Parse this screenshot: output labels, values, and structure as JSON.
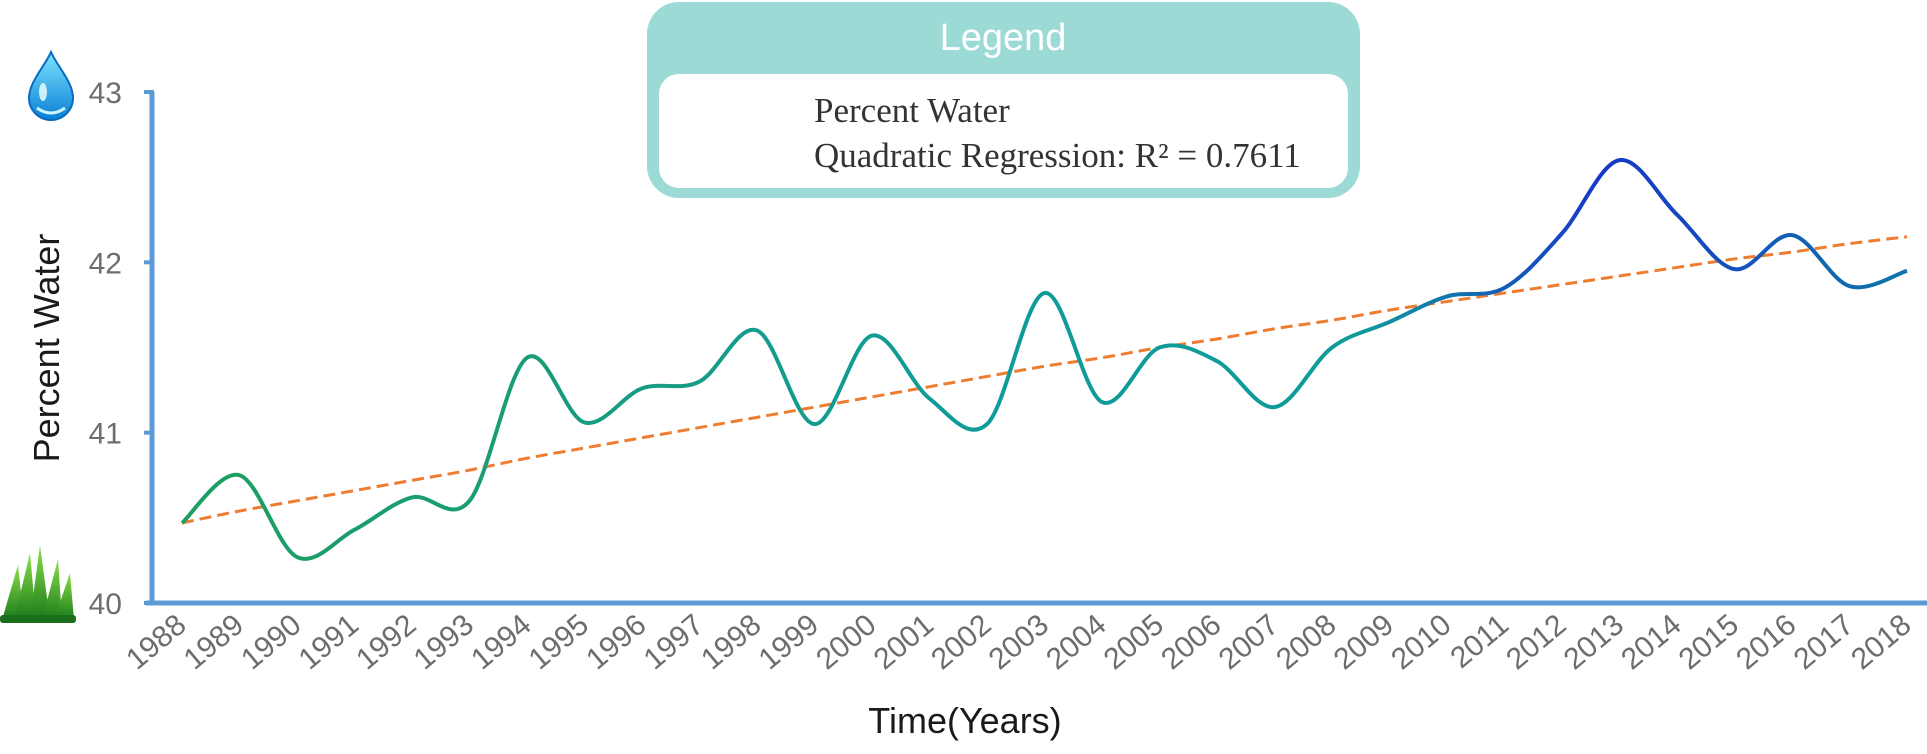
{
  "chart_data": {
    "type": "line",
    "xlabel": "Time(Years)",
    "ylabel": "Percent Water",
    "ylim": [
      40,
      43
    ],
    "yticks": [
      40,
      41,
      42,
      43
    ],
    "x": [
      1988,
      1989,
      1990,
      1991,
      1992,
      1993,
      1994,
      1995,
      1996,
      1997,
      1998,
      1999,
      2000,
      2001,
      2002,
      2003,
      2004,
      2005,
      2006,
      2007,
      2008,
      2009,
      2010,
      2011,
      2012,
      2013,
      2014,
      2015,
      2016,
      2017,
      2018
    ],
    "series": [
      {
        "name": "Percent Water",
        "values": [
          40.47,
          40.75,
          40.27,
          40.43,
          40.62,
          40.6,
          41.44,
          41.06,
          41.26,
          41.3,
          41.6,
          41.05,
          41.57,
          41.2,
          41.05,
          41.82,
          41.18,
          41.5,
          41.42,
          41.15,
          41.5,
          41.65,
          41.8,
          41.85,
          42.17,
          42.6,
          42.28,
          41.96,
          42.16,
          41.86,
          41.95
        ],
        "color_start": "#1e9e5f",
        "color_mid": "#0f9b9a",
        "color_end": "#1737c9"
      },
      {
        "name": "Quadratic Regression: R² = 0.7611",
        "values": [
          40.47,
          40.54,
          40.6,
          40.66,
          40.72,
          40.78,
          40.85,
          40.91,
          40.97,
          41.03,
          41.09,
          41.15,
          41.21,
          41.27,
          41.33,
          41.39,
          41.44,
          41.5,
          41.55,
          41.61,
          41.66,
          41.72,
          41.77,
          41.82,
          41.87,
          41.92,
          41.97,
          42.02,
          42.06,
          42.11,
          42.15
        ],
        "color": "#ed7d31",
        "style": "dashed"
      }
    ],
    "legend": {
      "title": "Legend",
      "placement": "top-center",
      "entries": [
        "Percent Water",
        "Quadratic Regression: R² = 0.7611"
      ]
    },
    "axis_color": "#5b9bd5",
    "grid": false
  },
  "icons": {
    "top": "water-drop-icon",
    "bottom": "grass-icon"
  },
  "colors": {
    "legend_frame": "#9cdad6"
  }
}
